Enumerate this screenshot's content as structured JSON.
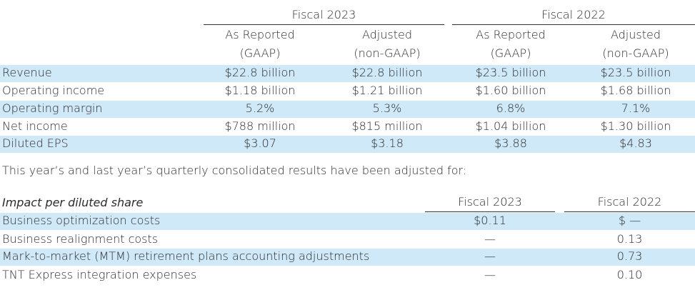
{
  "table1": {
    "groups": [
      "Fiscal 2023",
      "Fiscal 2022"
    ],
    "col_headers": [
      {
        "line1": "As Reported",
        "line2": "(GAAP)"
      },
      {
        "line1": "Adjusted",
        "line2": "(non-GAAP)"
      },
      {
        "line1": "As Reported",
        "line2": "(GAAP)"
      },
      {
        "line1": "Adjusted",
        "line2": "(non-GAAP)"
      }
    ],
    "rows": [
      {
        "label": "Revenue",
        "values": [
          "$22.8 billion",
          "$22.8 billion",
          "$23.5 billion",
          "$23.5 billion"
        ]
      },
      {
        "label": "Operating income",
        "values": [
          "$1.18 billion",
          "$1.21 billion",
          "$1.60 billion",
          "$1.68 billion"
        ]
      },
      {
        "label": "Operating margin",
        "values": [
          "5.2%",
          "5.3%",
          "6.8%",
          "7.1%"
        ]
      },
      {
        "label": "Net income",
        "values": [
          "$788 million",
          "$815 million",
          "$1.04 billion",
          "$1.30 billion"
        ]
      },
      {
        "label": "Diluted EPS",
        "values": [
          "$3.07",
          "$3.18",
          "$3.88",
          "$4.83"
        ]
      }
    ]
  },
  "note": "This year’s and last year’s quarterly consolidated results have been adjusted for:",
  "table2": {
    "header_label": "Impact per diluted share",
    "col_headers": [
      "Fiscal 2023",
      "Fiscal 2022"
    ],
    "rows": [
      {
        "label": "Business optimization costs",
        "values": [
          "$0.11",
          "$ —"
        ]
      },
      {
        "label": "Business realignment costs",
        "values": [
          "—",
          "0.13"
        ]
      },
      {
        "label": "Mark-to-market (MTM) retirement plans accounting adjustments",
        "values": [
          "—",
          "0.73"
        ]
      },
      {
        "label": "TNT Express integration expenses",
        "values": [
          "—",
          "0.10"
        ]
      }
    ]
  },
  "colors": {
    "band": "#cfe9f8",
    "text": "#2b2b2b",
    "rule": "#333333"
  }
}
